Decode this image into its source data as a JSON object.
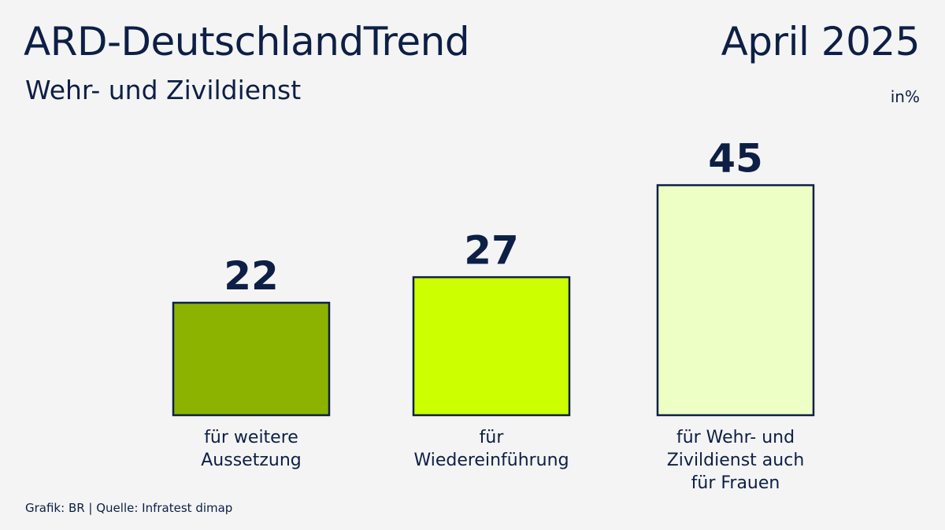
{
  "header": {
    "title": "ARD-DeutschlandTrend",
    "date": "April 2025",
    "subtitle": "Wehr- und Zivildienst",
    "unit": "in%"
  },
  "footer": {
    "source": "Grafik: BR | Quelle: Infratest dimap"
  },
  "colors": {
    "background": "#f4f4f4",
    "text": "#0d1f45",
    "bar_outline": "#0d1f45",
    "bars": [
      "#8bb300",
      "#ccff00",
      "#eeffc6"
    ]
  },
  "chart_data": {
    "type": "bar",
    "title": "Wehr- und Zivildienst",
    "categories": [
      "für weitere\nAussetzung",
      "für\nWiedereinführung",
      "für Wehr- und\nZivildienst auch\nfür Frauen"
    ],
    "values": [
      22,
      27,
      45
    ],
    "unit": "in%",
    "grid": false,
    "legend": "none"
  }
}
